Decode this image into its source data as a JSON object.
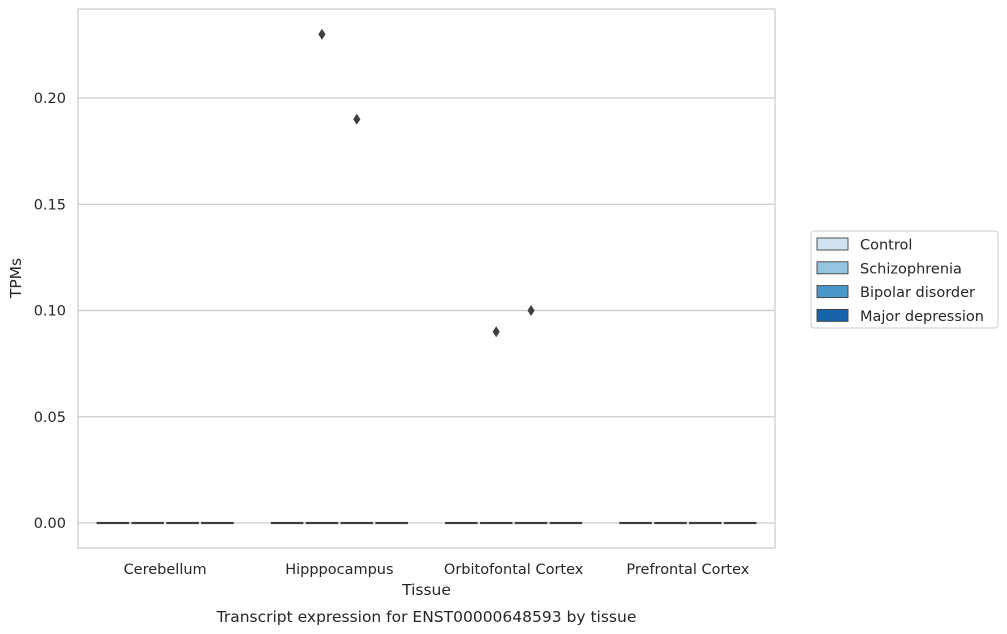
{
  "chart_data": {
    "type": "boxplot",
    "caption": "Transcript expression for ENST00000648593 by tissue",
    "xlabel": "Tissue",
    "ylabel": "TPMs",
    "ylim": [
      -0.011,
      0.242
    ],
    "yticks": [
      "0.00",
      "0.05",
      "0.10",
      "0.15",
      "0.20"
    ],
    "grid": "horizontal",
    "legend_position": "right",
    "categories": [
      "Cerebellum",
      "Hipppocampus",
      "Orbitofontal Cortex",
      "Prefrontal Cortex"
    ],
    "series": [
      {
        "name": "Control",
        "color": "#d0e1f2",
        "boxes": [
          {
            "median": 0,
            "q1": 0,
            "q3": 0,
            "outliers": []
          },
          {
            "median": 0,
            "q1": 0,
            "q3": 0,
            "outliers": []
          },
          {
            "median": 0,
            "q1": 0,
            "q3": 0,
            "outliers": []
          },
          {
            "median": 0,
            "q1": 0,
            "q3": 0,
            "outliers": []
          }
        ]
      },
      {
        "name": "Schizophrenia",
        "color": "#94c4df",
        "boxes": [
          {
            "median": 0,
            "q1": 0,
            "q3": 0,
            "outliers": []
          },
          {
            "median": 0,
            "q1": 0,
            "q3": 0,
            "outliers": [
              0.23
            ]
          },
          {
            "median": 0,
            "q1": 0,
            "q3": 0,
            "outliers": [
              0.09
            ]
          },
          {
            "median": 0,
            "q1": 0,
            "q3": 0,
            "outliers": []
          }
        ]
      },
      {
        "name": "Bipolar disorder",
        "color": "#4a98c9",
        "boxes": [
          {
            "median": 0,
            "q1": 0,
            "q3": 0,
            "outliers": []
          },
          {
            "median": 0,
            "q1": 0,
            "q3": 0,
            "outliers": [
              0.19
            ]
          },
          {
            "median": 0,
            "q1": 0,
            "q3": 0,
            "outliers": [
              0.1
            ]
          },
          {
            "median": 0,
            "q1": 0,
            "q3": 0,
            "outliers": []
          }
        ]
      },
      {
        "name": "Major depression",
        "color": "#1764ab",
        "boxes": [
          {
            "median": 0,
            "q1": 0,
            "q3": 0,
            "outliers": []
          },
          {
            "median": 0,
            "q1": 0,
            "q3": 0,
            "outliers": []
          },
          {
            "median": 0,
            "q1": 0,
            "q3": 0,
            "outliers": []
          },
          {
            "median": 0,
            "q1": 0,
            "q3": 0,
            "outliers": []
          }
        ]
      }
    ]
  }
}
